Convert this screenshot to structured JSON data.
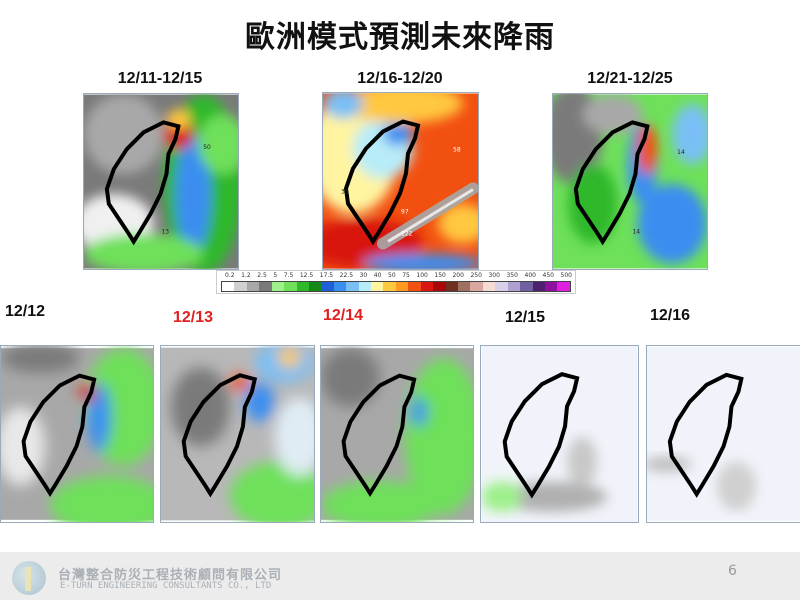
{
  "title": "歐洲模式預測未來降雨",
  "period_maps": [
    {
      "label": "12/11-12/15",
      "values": [
        "50",
        "13"
      ]
    },
    {
      "label": "12/16-12/20",
      "values": [
        "58",
        "35",
        "97",
        "122"
      ]
    },
    {
      "label": "12/21-12/25",
      "values": [
        "14",
        "14"
      ]
    }
  ],
  "daily_maps": [
    {
      "label": "12/12",
      "color": "#111111"
    },
    {
      "label": "12/13",
      "color": "#e02020"
    },
    {
      "label": "12/14",
      "color": "#e02020"
    },
    {
      "label": "12/15",
      "color": "#111111"
    },
    {
      "label": "12/16",
      "color": "#111111"
    }
  ],
  "colorbar": {
    "ticks": [
      "0.2",
      "1.2",
      "2.5",
      "5",
      "7.5",
      "12.5",
      "17.5",
      "22.5",
      "30",
      "40",
      "50",
      "75",
      "100",
      "150",
      "200",
      "250",
      "300",
      "350",
      "400",
      "450",
      "500"
    ],
    "colors": [
      "#ffffff",
      "#d0d0d0",
      "#a8a8a8",
      "#7a7a7a",
      "#9ef08a",
      "#6ee05a",
      "#2fb82a",
      "#138a18",
      "#1f5fd8",
      "#3a8ef0",
      "#79bff5",
      "#b8ecf8",
      "#fff4a0",
      "#ffc840",
      "#ff9a20",
      "#f25010",
      "#d81810",
      "#a80808",
      "#703020",
      "#a07060",
      "#d8a8a0",
      "#f4dcd4",
      "#d8d0e8",
      "#b0a0d0",
      "#7060a0",
      "#502070",
      "#9010a0",
      "#e020e0"
    ]
  },
  "footer": {
    "company_zh": "台灣整合防災工程技術顧問有限公司",
    "company_en": "E-TURN ENGINEERING CONSULTANTS CO., LTD",
    "page_number": "6"
  }
}
